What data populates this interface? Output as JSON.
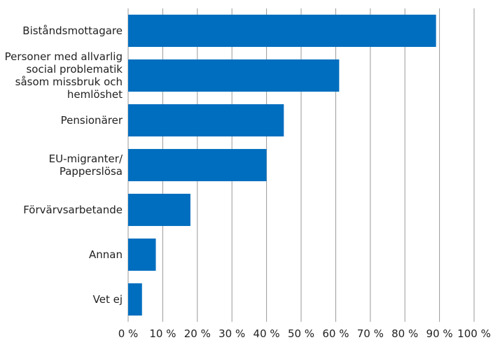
{
  "chart_data": {
    "type": "bar",
    "orientation": "horizontal",
    "categories": [
      "Biståndsmottagare",
      "Personer med allvarlig\nsocial problematik\nsåsom missbruk och\nhemlöshet",
      "Pensionärer",
      "EU-migranter/\nPapperslösa",
      "Förvärvsarbetande",
      "Annan",
      "Vet ej"
    ],
    "values": [
      89,
      61,
      45,
      40,
      18,
      8,
      4
    ],
    "color": "#006ebf",
    "xlim": [
      0,
      100
    ],
    "xticks": [
      {
        "value": 0,
        "label": "0 %"
      },
      {
        "value": 10,
        "label": "10 %"
      },
      {
        "value": 20,
        "label": "20 %"
      },
      {
        "value": 30,
        "label": "30 %"
      },
      {
        "value": 40,
        "label": "40 %"
      },
      {
        "value": 50,
        "label": "50 %"
      },
      {
        "value": 60,
        "label": "60 %"
      },
      {
        "value": 70,
        "label": "70 %"
      },
      {
        "value": 80,
        "label": "80 %"
      },
      {
        "value": 90,
        "label": "90 %"
      },
      {
        "value": 100,
        "label": "100 %"
      }
    ],
    "grid": true
  }
}
